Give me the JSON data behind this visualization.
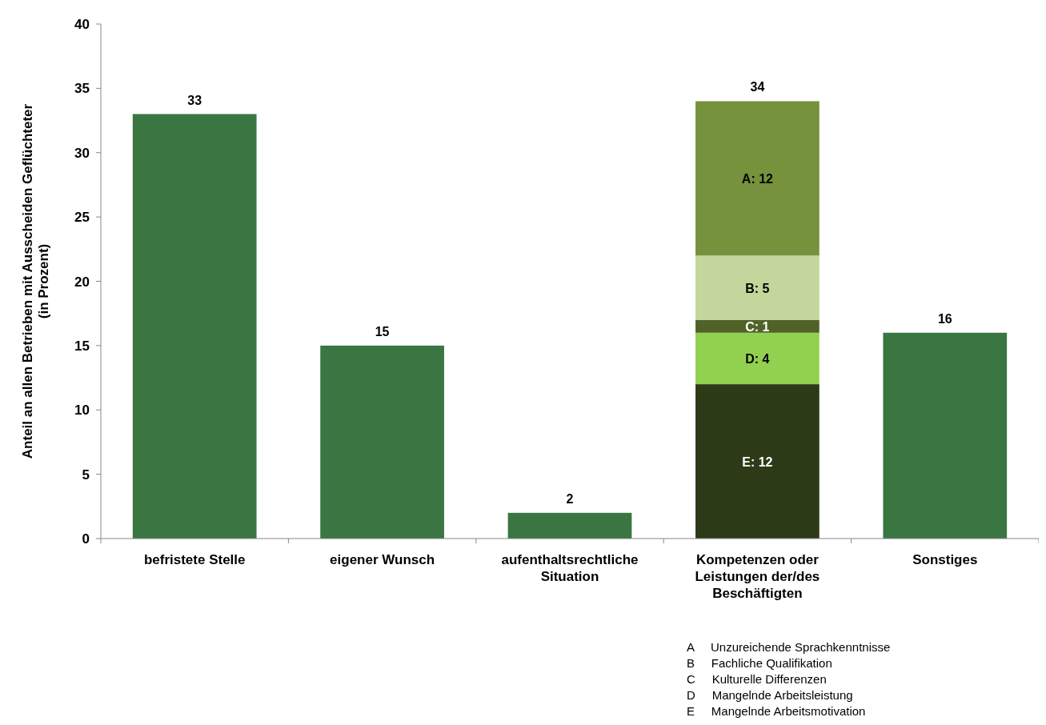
{
  "chart_data": {
    "type": "bar",
    "stacked": true,
    "ylabel": "Anteil an allen Betrieben mit Ausscheiden Geflüchteter (in Prozent)",
    "categories": [
      "befristete Stelle",
      "eigener Wunsch",
      "aufenthaltsrechtliche Situation",
      "Kompetenzen oder Leistungen der/des Beschäftigten",
      "Sonstiges"
    ],
    "series": [
      {
        "color": "#3a7642",
        "values": [
          33,
          15,
          2,
          null,
          16
        ],
        "value_labels": [
          "33",
          "15",
          "2",
          null,
          "16"
        ]
      },
      {
        "color": "#2d3a17",
        "values": [
          null,
          null,
          null,
          12,
          null
        ],
        "value_labels": [
          null,
          null,
          null,
          "E: 12",
          null
        ]
      },
      {
        "color": "#92d050",
        "values": [
          null,
          null,
          null,
          4,
          null
        ],
        "value_labels": [
          null,
          null,
          null,
          "D: 4",
          null
        ]
      },
      {
        "color": "#4f6228",
        "values": [
          null,
          null,
          null,
          1,
          null
        ],
        "value_labels": [
          null,
          null,
          null,
          "C:   1",
          null
        ]
      },
      {
        "color": "#c3d69b",
        "values": [
          null,
          null,
          null,
          5,
          null
        ],
        "value_labels": [
          null,
          null,
          null,
          "B: 5",
          null
        ]
      },
      {
        "color": "#76923c",
        "values": [
          null,
          null,
          null,
          12,
          null
        ],
        "value_labels": [
          null,
          null,
          null,
          "A: 12",
          null
        ]
      }
    ],
    "totals": [
      null,
      null,
      null,
      "34",
      null
    ],
    "ylim": [
      0,
      40
    ],
    "yticks": [
      0,
      5,
      10,
      15,
      20,
      25,
      30,
      35,
      40
    ],
    "grid": false,
    "annotations": [
      "A     Unzureichende Sprachkenntnisse",
      "B     Fachliche Qualifikation",
      "C     Kulturelle Differenzen",
      "D     Mangelnde Arbeitsleistung",
      "E     Mangelnde Arbeitsmotivation"
    ]
  }
}
